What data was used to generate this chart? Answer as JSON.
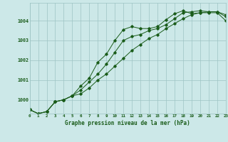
{
  "title": "Graphe pression niveau de la mer (hPa)",
  "background_color": "#cce8e8",
  "plot_bg_color": "#cce8e8",
  "line_color": "#1a5c1a",
  "grid_color": "#9dc4c4",
  "x_ticks": [
    0,
    1,
    2,
    3,
    4,
    5,
    6,
    7,
    8,
    9,
    10,
    11,
    12,
    13,
    14,
    15,
    16,
    17,
    18,
    19,
    20,
    21,
    22,
    23
  ],
  "y_ticks": [
    1000,
    1001,
    1002,
    1003,
    1004
  ],
  "ylim": [
    999.3,
    1004.9
  ],
  "xlim": [
    0,
    23
  ],
  "series1": [
    999.5,
    999.3,
    999.4,
    999.9,
    1000.0,
    1000.2,
    1000.7,
    1001.1,
    1001.9,
    1002.3,
    1003.0,
    1003.55,
    1003.7,
    1003.6,
    1003.6,
    1003.7,
    1004.05,
    1004.35,
    1004.5,
    1004.35,
    1004.4,
    1004.4,
    1004.4,
    1004.0
  ],
  "series2": [
    999.5,
    999.3,
    999.4,
    999.9,
    1000.0,
    1000.2,
    1000.5,
    1000.9,
    1001.3,
    1001.8,
    1002.4,
    1003.0,
    1003.2,
    1003.3,
    1003.5,
    1003.6,
    1003.8,
    1004.1,
    1004.4,
    1004.45,
    1004.5,
    1004.45,
    1004.45,
    1004.2
  ],
  "series3": [
    999.5,
    999.3,
    999.4,
    999.9,
    1000.0,
    1000.2,
    1000.3,
    1000.6,
    1001.0,
    1001.3,
    1001.7,
    1002.1,
    1002.5,
    1002.8,
    1003.1,
    1003.3,
    1003.6,
    1003.85,
    1004.1,
    1004.3,
    1004.4,
    1004.45,
    1004.45,
    1004.3
  ]
}
